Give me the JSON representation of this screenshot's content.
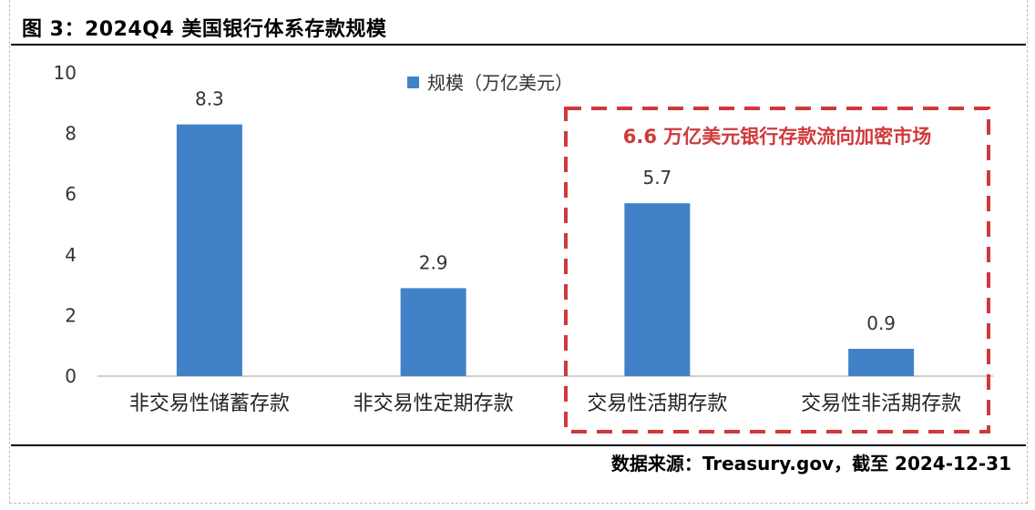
{
  "figure": {
    "title": "图 3：2024Q4 美国银行体系存款规模",
    "source": "数据来源：Treasury.gov，截至 2024-12-31"
  },
  "colors": {
    "bar": "#4181c8",
    "annotation": "#d0393b",
    "axis": "#bfbfbf"
  },
  "annotation": {
    "text": "6.6 万亿美元银行存款流向加密市场",
    "covers_categories": [
      "交易性活期存款",
      "交易性非活期存款"
    ]
  },
  "chart_data": {
    "type": "bar",
    "categories": [
      "非交易性储蓄存款",
      "非交易性定期存款",
      "交易性活期存款",
      "交易性非活期存款"
    ],
    "series": [
      {
        "name": "规模（万亿美元）",
        "values": [
          8.3,
          2.9,
          5.7,
          0.9
        ]
      }
    ],
    "value_labels": [
      "8.3",
      "2.9",
      "5.7",
      "0.9"
    ],
    "ylim": [
      0,
      10
    ],
    "yticks": [
      0,
      2,
      4,
      6,
      8,
      10
    ],
    "ytick_labels": [
      "0",
      "2",
      "4",
      "6",
      "8",
      "10"
    ],
    "grid": false,
    "legend": "top-center"
  }
}
